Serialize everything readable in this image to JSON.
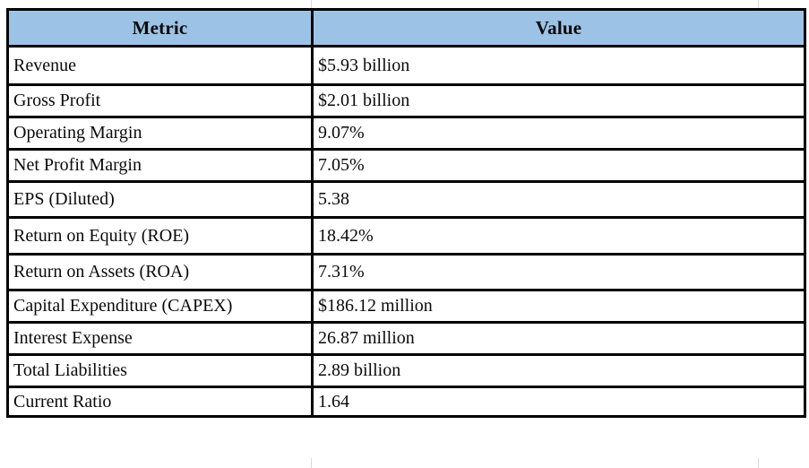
{
  "colors": {
    "header_bg": "#9CC3E6",
    "border": "#000000",
    "text": "#0a0a0a"
  },
  "table": {
    "columns": [
      {
        "key": "metric",
        "label": "Metric"
      },
      {
        "key": "value",
        "label": "Value"
      }
    ],
    "rows": [
      {
        "metric": "Revenue",
        "value": "$5.93 billion"
      },
      {
        "metric": "Gross Profit",
        "value": "$2.01 billion"
      },
      {
        "metric": "Operating Margin",
        "value": "9.07%"
      },
      {
        "metric": "Net Profit Margin",
        "value": "7.05%"
      },
      {
        "metric": "EPS (Diluted)",
        "value": "5.38"
      },
      {
        "metric": "Return on Equity (ROE)",
        "value": "18.42%"
      },
      {
        "metric": "Return on Assets (ROA)",
        "value": "7.31%"
      },
      {
        "metric": "Capital Expenditure (CAPEX)",
        "value": "$186.12 million"
      },
      {
        "metric": "Interest Expense",
        "value": "26.87 million"
      },
      {
        "metric": "Total Liabilities",
        "value": "2.89 billion"
      },
      {
        "metric": "Current Ratio",
        "value": "1.64"
      }
    ]
  }
}
